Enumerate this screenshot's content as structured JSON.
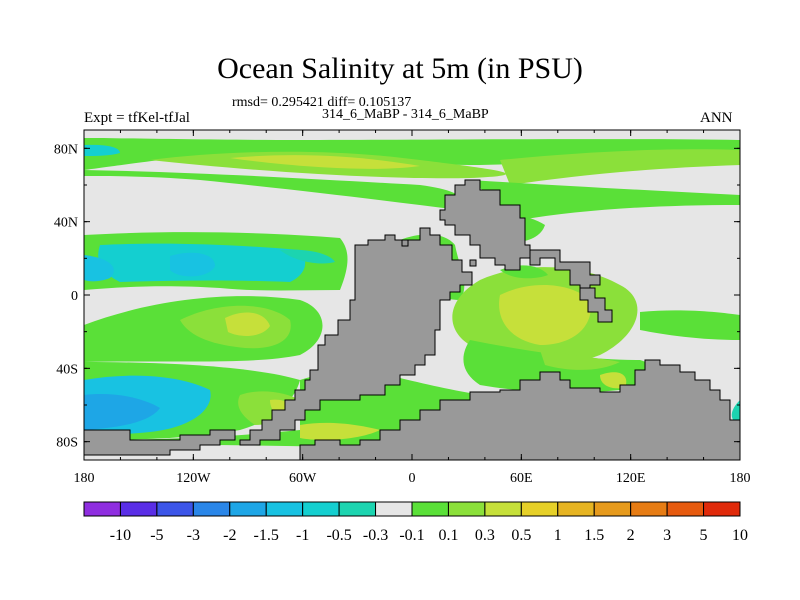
{
  "chart_data": {
    "type": "heatmap",
    "title": "Ocean Salinity at 5m (in PSU)",
    "stats_line": "rmsd= 0.295421 diff= 0.105137",
    "subtitle": "314_6_MaBP - 314_6_MaBP",
    "left_label": "Expt = tfKel-tfJal",
    "right_label": "ANN",
    "x_ticks": [
      "180",
      "120W",
      "60W",
      "0",
      "60E",
      "120E",
      "180"
    ],
    "y_ticks": [
      "80N",
      "40N",
      "0",
      "40S",
      "80S"
    ],
    "xlim": [
      -180,
      180
    ],
    "ylim": [
      -90,
      90
    ],
    "colorbar": {
      "colors": [
        "#8f2ee0",
        "#5a2ee6",
        "#3c55e8",
        "#2a86e8",
        "#1ea6e6",
        "#18c2e2",
        "#14cfd0",
        "#1cd4b0",
        "#e6e6e6",
        "#5ae038",
        "#8be03a",
        "#c6e03a",
        "#e6d028",
        "#e6b422",
        "#e69a1c",
        "#e67c14",
        "#e65a0e",
        "#e02a0a"
      ],
      "labels": [
        "-10",
        "-5",
        "-3",
        "-2",
        "-1.5",
        "-1",
        "-0.5",
        "-0.3",
        "-0.1",
        "0.1",
        "0.3",
        "0.5",
        "1",
        "1.5",
        "2",
        "3",
        "5",
        "10"
      ]
    }
  }
}
